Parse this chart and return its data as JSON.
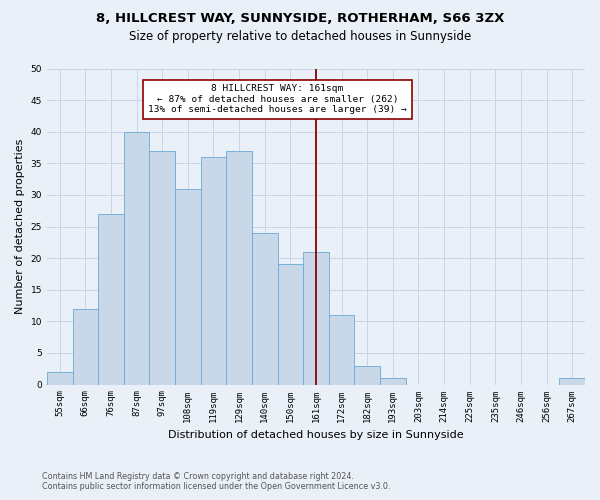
{
  "title1": "8, HILLCREST WAY, SUNNYSIDE, ROTHERHAM, S66 3ZX",
  "title2": "Size of property relative to detached houses in Sunnyside",
  "xlabel": "Distribution of detached houses by size in Sunnyside",
  "ylabel": "Number of detached properties",
  "bar_labels": [
    "55sqm",
    "66sqm",
    "76sqm",
    "87sqm",
    "97sqm",
    "108sqm",
    "119sqm",
    "129sqm",
    "140sqm",
    "150sqm",
    "161sqm",
    "172sqm",
    "182sqm",
    "193sqm",
    "203sqm",
    "214sqm",
    "225sqm",
    "235sqm",
    "246sqm",
    "256sqm",
    "267sqm"
  ],
  "bar_values": [
    2,
    12,
    27,
    40,
    37,
    31,
    36,
    37,
    24,
    19,
    21,
    11,
    3,
    1,
    0,
    0,
    0,
    0,
    0,
    0,
    1
  ],
  "bar_color": "#c8d8e8",
  "bar_edgecolor": "#6aaad4",
  "highlight_index": 10,
  "vline_color": "#8b0000",
  "annotation_text": "8 HILLCREST WAY: 161sqm\n← 87% of detached houses are smaller (262)\n13% of semi-detached houses are larger (39) →",
  "annotation_box_color": "#ffffff",
  "annotation_box_edgecolor": "#8b0000",
  "ylim": [
    0,
    50
  ],
  "yticks": [
    0,
    5,
    10,
    15,
    20,
    25,
    30,
    35,
    40,
    45,
    50
  ],
  "grid_color": "#c8d4e8",
  "background_color": "#eaf0f8",
  "footer1": "Contains HM Land Registry data © Crown copyright and database right 2024.",
  "footer2": "Contains public sector information licensed under the Open Government Licence v3.0.",
  "title_fontsize": 9.5,
  "subtitle_fontsize": 8.5,
  "tick_fontsize": 6.5,
  "ylabel_fontsize": 8,
  "xlabel_fontsize": 8,
  "footer_fontsize": 5.8
}
